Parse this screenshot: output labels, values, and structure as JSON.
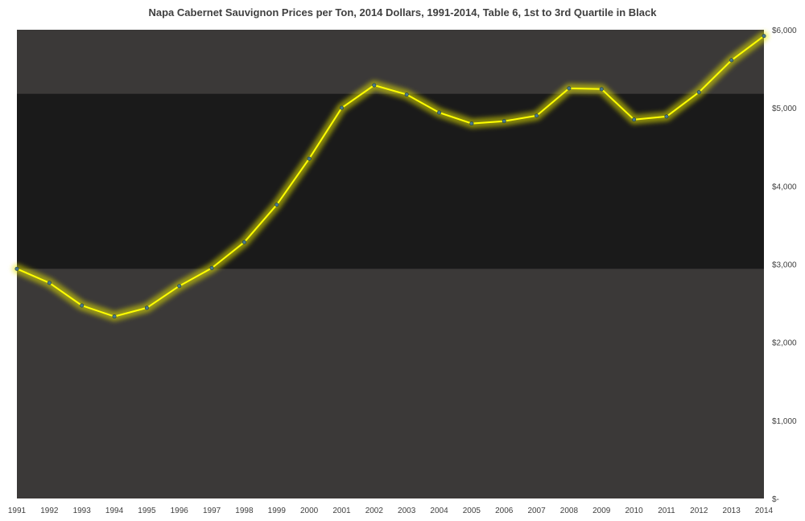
{
  "chart_data": {
    "type": "line",
    "title": "Napa Cabernet Sauvignon Prices per Ton, 2014 Dollars, 1991-2014, Table 6, 1st to 3rd Quartile in Black",
    "xlabel": "",
    "ylabel": "",
    "categories": [
      "1991",
      "1992",
      "1993",
      "1994",
      "1995",
      "1996",
      "1997",
      "1998",
      "1999",
      "2000",
      "2001",
      "2002",
      "2003",
      "2004",
      "2005",
      "2006",
      "2007",
      "2008",
      "2009",
      "2010",
      "2011",
      "2012",
      "2013",
      "2014"
    ],
    "series": [
      {
        "values": [
          2940,
          2760,
          2470,
          2330,
          2440,
          2720,
          2950,
          3280,
          3760,
          4350,
          5000,
          5290,
          5170,
          4940,
          4800,
          4830,
          4900,
          5250,
          5240,
          4850,
          4890,
          5200,
          5610,
          5920
        ]
      }
    ],
    "quartile_band": {
      "q1": 2940,
      "q3": 5180
    },
    "ylim": [
      0,
      6000
    ],
    "yticks": [
      "$-",
      "$1,000",
      "$2,000",
      "$3,000",
      "$4,000",
      "$5,000",
      "$6,000"
    ],
    "y_axis_position": "right",
    "grid": false,
    "legend": "none",
    "colors": {
      "plot_background": "#3b3938",
      "quartile_band": "#1a1a1a",
      "line": "#ffff00",
      "glow": "#e6e600",
      "marker": "#4a7a8c"
    }
  }
}
